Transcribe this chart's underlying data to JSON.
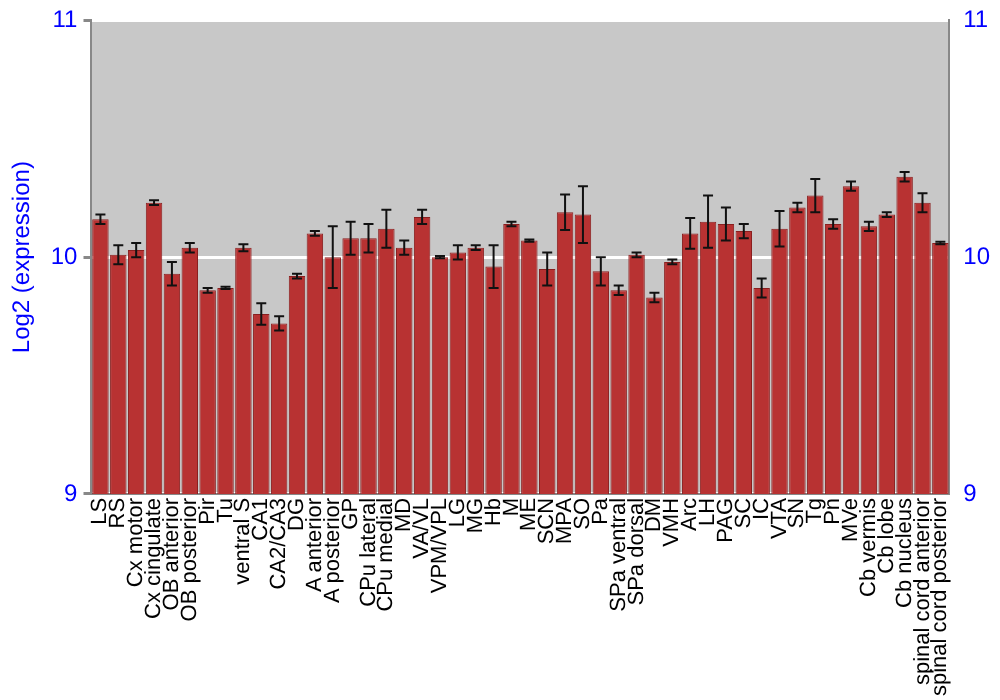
{
  "chart_data": {
    "type": "bar",
    "ylabel": "Log2 (expression)",
    "categories": [
      "LS",
      "RS",
      "Cx motor",
      "Cx cingulate",
      "OB anterior",
      "OB posterior",
      "Pir",
      "Tu",
      "ventral S",
      "CA1",
      "CA2/CA3",
      "DG",
      "A anterior",
      "A posterior",
      "GP",
      "CPu lateral",
      "CPu medial",
      "MD",
      "VA/VL",
      "VPM/VPL",
      "LG",
      "MG",
      "Hb",
      "M",
      "ME",
      "SCN",
      "MPA",
      "SO",
      "Pa",
      "SPa ventral",
      "SPa dorsal",
      "DM",
      "VMH",
      "Arc",
      "LH",
      "PAG",
      "SC",
      "IC",
      "VTA",
      "SN",
      "Tg",
      "Pn",
      "MVe",
      "Cb vermis",
      "Cb lobe",
      "Cb nucleus",
      "spinal cord anterior",
      "spinal cord posterior"
    ],
    "values": [
      10.16,
      10.01,
      10.03,
      10.23,
      9.93,
      10.04,
      9.86,
      9.87,
      10.04,
      9.76,
      9.72,
      9.92,
      10.1,
      10.0,
      10.08,
      10.08,
      10.12,
      10.04,
      10.17,
      10.0,
      10.02,
      10.04,
      9.96,
      10.14,
      10.07,
      9.95,
      10.19,
      10.18,
      9.94,
      9.86,
      10.01,
      9.83,
      9.98,
      10.1,
      10.15,
      10.14,
      10.11,
      9.87,
      10.12,
      10.21,
      10.26,
      10.14,
      10.3,
      10.13,
      10.18,
      10.34,
      10.23,
      10.06
    ],
    "errors": [
      0.02,
      0.04,
      0.03,
      0.01,
      0.05,
      0.02,
      0.01,
      0.005,
      0.015,
      0.045,
      0.03,
      0.01,
      0.01,
      0.13,
      0.07,
      0.06,
      0.08,
      0.03,
      0.03,
      0.005,
      0.03,
      0.01,
      0.09,
      0.01,
      0.005,
      0.07,
      0.075,
      0.12,
      0.06,
      0.02,
      0.01,
      0.02,
      0.01,
      0.065,
      0.11,
      0.07,
      0.03,
      0.04,
      0.075,
      0.02,
      0.07,
      0.02,
      0.02,
      0.02,
      0.01,
      0.02,
      0.04,
      0.005
    ],
    "color": "#b83232",
    "ylim": [
      9,
      11
    ],
    "yticks": [
      9,
      10,
      11
    ],
    "y2lim": [
      9,
      11
    ],
    "y2ticks": [
      9,
      10,
      11
    ],
    "grid": "y",
    "legend": false
  }
}
